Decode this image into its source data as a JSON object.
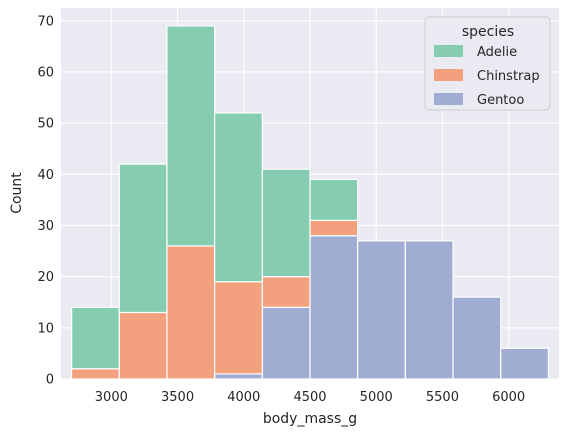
{
  "chart_data": {
    "type": "bar",
    "stacked": true,
    "xlabel": "body_mass_g",
    "ylabel": "Count",
    "xlim": [
      2620,
      6380
    ],
    "ylim": [
      0,
      72.5
    ],
    "x_ticks": [
      3000,
      3500,
      4000,
      4500,
      5000,
      5500,
      6000
    ],
    "y_ticks": [
      0,
      10,
      20,
      30,
      40,
      50,
      60,
      70
    ],
    "grid": true,
    "bins": [
      [
        2700,
        3060
      ],
      [
        3060,
        3420
      ],
      [
        3420,
        3780
      ],
      [
        3780,
        4140
      ],
      [
        4140,
        4500
      ],
      [
        4500,
        4860
      ],
      [
        4860,
        5220
      ],
      [
        5220,
        5580
      ],
      [
        5580,
        5940
      ],
      [
        5940,
        6300
      ]
    ],
    "legend": {
      "title": "species",
      "position": "top-right"
    },
    "series": [
      {
        "name": "Gentoo",
        "color": "#a0acd2",
        "values": [
          0,
          0,
          0,
          1,
          14,
          28,
          27,
          27,
          16,
          6
        ]
      },
      {
        "name": "Chinstrap",
        "color": "#f3a07f",
        "values": [
          2,
          13,
          26,
          18,
          6,
          3,
          0,
          0,
          0,
          0
        ]
      },
      {
        "name": "Adelie",
        "color": "#86ccb1",
        "values": [
          12,
          29,
          43,
          33,
          21,
          8,
          0,
          0,
          0,
          0
        ]
      }
    ],
    "legend_order": [
      "Adelie",
      "Chinstrap",
      "Gentoo"
    ]
  }
}
